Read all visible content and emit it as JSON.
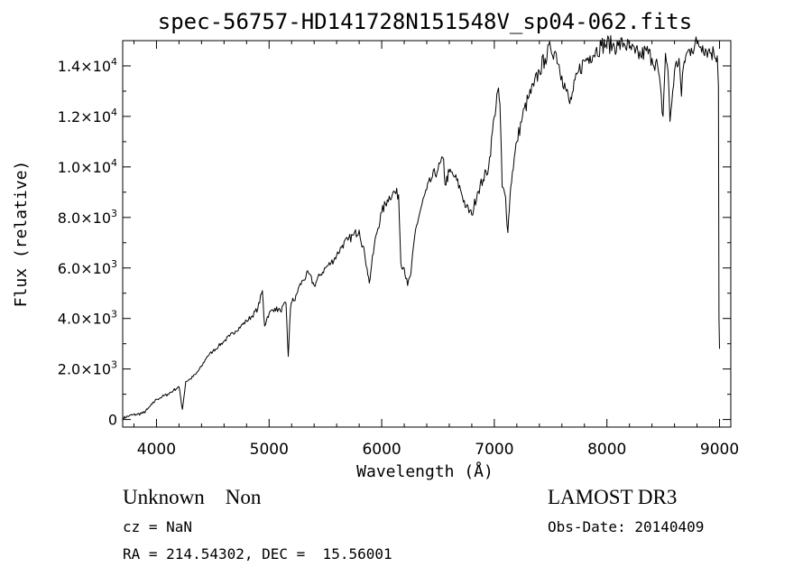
{
  "chart_data": {
    "type": "line",
    "title": "spec-56757-HD141728N151548V_sp04-062.fits",
    "xlabel": "Wavelength (Å)",
    "ylabel": "Flux (relative)",
    "xlim": [
      3700,
      9100
    ],
    "ylim": [
      -300,
      15000
    ],
    "x_ticks": [
      {
        "value": 4000,
        "label": "4000"
      },
      {
        "value": 5000,
        "label": "5000"
      },
      {
        "value": 6000,
        "label": "6000"
      },
      {
        "value": 7000,
        "label": "7000"
      },
      {
        "value": 8000,
        "label": "8000"
      },
      {
        "value": 9000,
        "label": "9000"
      }
    ],
    "y_ticks": [
      {
        "value": 0,
        "mantissa": "0",
        "exponent": ""
      },
      {
        "value": 2000,
        "mantissa": "2.0×10",
        "exponent": "3"
      },
      {
        "value": 4000,
        "mantissa": "4.0×10",
        "exponent": "3"
      },
      {
        "value": 6000,
        "mantissa": "6.0×10",
        "exponent": "3"
      },
      {
        "value": 8000,
        "mantissa": "8.0×10",
        "exponent": "3"
      },
      {
        "value": 10000,
        "mantissa": "1.0×10",
        "exponent": "4"
      },
      {
        "value": 12000,
        "mantissa": "1.2×10",
        "exponent": "4"
      },
      {
        "value": 14000,
        "mantissa": "1.4×10",
        "exponent": "4"
      }
    ],
    "grid": false,
    "series": [
      {
        "x": [
          3700,
          3760,
          3820,
          3880,
          3920,
          3960,
          4000,
          4050,
          4100,
          4150,
          4200,
          4230,
          4260,
          4300,
          4350,
          4400,
          4450,
          4500,
          4550,
          4600,
          4650,
          4700,
          4750,
          4800,
          4850,
          4900,
          4940,
          4960,
          4980,
          5000,
          5050,
          5100,
          5150,
          5170,
          5190,
          5210,
          5230,
          5260,
          5300,
          5350,
          5400,
          5450,
          5500,
          5550,
          5600,
          5650,
          5700,
          5750,
          5800,
          5850,
          5870,
          5890,
          5910,
          5950,
          6000,
          6050,
          6100,
          6150,
          6170,
          6200,
          6230,
          6260,
          6300,
          6350,
          6400,
          6450,
          6500,
          6550,
          6563,
          6600,
          6650,
          6700,
          6750,
          6800,
          6850,
          6900,
          6950,
          7000,
          7030,
          7050,
          7070,
          7100,
          7120,
          7140,
          7160,
          7200,
          7250,
          7300,
          7350,
          7400,
          7450,
          7500,
          7550,
          7600,
          7640,
          7670,
          7700,
          7750,
          7800,
          7850,
          7900,
          7950,
          8000,
          8050,
          8100,
          8150,
          8200,
          8250,
          8300,
          8350,
          8400,
          8450,
          8498,
          8520,
          8542,
          8560,
          8600,
          8640,
          8662,
          8680,
          8700,
          8750,
          8800,
          8850,
          8900,
          8950,
          8980,
          8990,
          8995,
          9000
        ],
        "y": [
          50,
          150,
          200,
          250,
          400,
          600,
          800,
          900,
          1000,
          1150,
          1300,
          400,
          1500,
          1600,
          1800,
          2100,
          2500,
          2700,
          2900,
          3100,
          3300,
          3500,
          3700,
          3900,
          4100,
          4400,
          5100,
          3700,
          4000,
          4200,
          4400,
          4300,
          4600,
          2500,
          4400,
          4800,
          4700,
          5200,
          5500,
          5800,
          5300,
          5700,
          6000,
          6200,
          6500,
          6900,
          7100,
          7300,
          7500,
          6500,
          6000,
          5400,
          6100,
          7300,
          8200,
          8700,
          9000,
          8900,
          6200,
          6000,
          5300,
          5800,
          7500,
          8400,
          9100,
          9600,
          9900,
          10300,
          9300,
          9800,
          9600,
          9100,
          8400,
          8100,
          9000,
          9500,
          10000,
          12000,
          13000,
          12500,
          9200,
          8800,
          7400,
          8900,
          9800,
          11000,
          12000,
          12700,
          13200,
          13800,
          14300,
          14700,
          14500,
          13600,
          13000,
          12500,
          13000,
          13800,
          14200,
          14400,
          14600,
          14800,
          14900,
          14800,
          14800,
          14900,
          14700,
          14500,
          14400,
          14600,
          14300,
          14000,
          12000,
          14500,
          13800,
          11800,
          13800,
          14300,
          12800,
          14000,
          14400,
          14700,
          14900,
          14800,
          14600,
          14500,
          14400,
          13200,
          4000,
          2800
        ]
      }
    ]
  },
  "footer": {
    "object": "Unknown    Non",
    "survey": "LAMOST DR3",
    "cz": "cz = NaN",
    "obs_date": "Obs-Date: 20140409",
    "coords": "RA = 214.54302, DEC =  15.56001"
  }
}
